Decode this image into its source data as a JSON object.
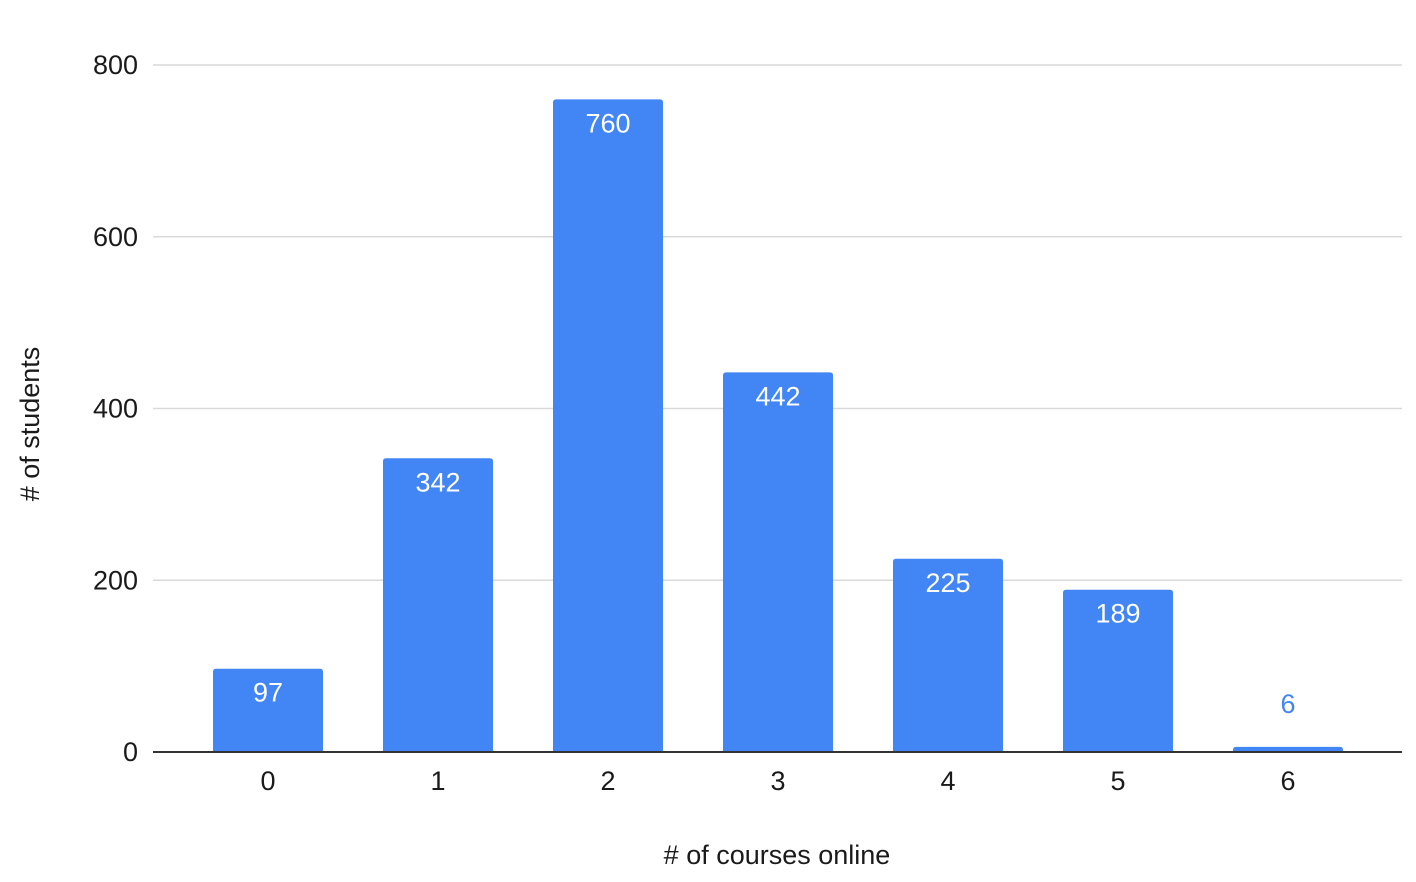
{
  "chart_data": {
    "type": "bar",
    "categories": [
      "0",
      "1",
      "2",
      "3",
      "4",
      "5",
      "6"
    ],
    "values": [
      97,
      342,
      760,
      442,
      225,
      189,
      6
    ],
    "xlabel": "# of courses online",
    "ylabel": "# of students",
    "ylim": [
      0,
      800
    ],
    "yticks": [
      0,
      200,
      400,
      600,
      800
    ],
    "grid": true,
    "legend": "none",
    "colors": {
      "bar": "#4285f4",
      "label_inside": "#ffffff",
      "label_outside": "#4285f4",
      "grid": "#d9d9d9",
      "axis": "#333333"
    }
  }
}
